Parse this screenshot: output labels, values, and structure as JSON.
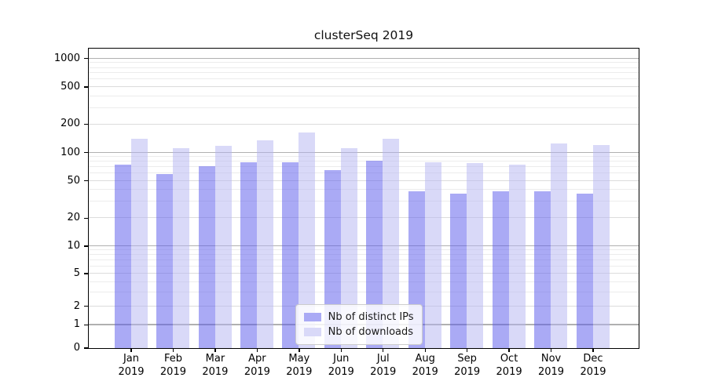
{
  "chart_data": {
    "type": "bar",
    "title": "clusterSeq 2019",
    "categories": [
      "Jan 2019",
      "Feb 2019",
      "Mar 2019",
      "Apr 2019",
      "May 2019",
      "Jun 2019",
      "Jul 2019",
      "Aug 2019",
      "Sep 2019",
      "Oct 2019",
      "Nov 2019",
      "Dec 2019"
    ],
    "series": [
      {
        "name": "Nb of distinct IPs",
        "color": "#aaaaf5",
        "values": [
          73,
          58,
          71,
          78,
          78,
          64,
          81,
          38,
          36,
          38,
          38,
          36
        ]
      },
      {
        "name": "Nb of downloads",
        "color": "#d9d9f8",
        "values": [
          140,
          110,
          116,
          133,
          162,
          110,
          140,
          78,
          77,
          73,
          124,
          120
        ]
      }
    ],
    "y_axis": {
      "scale": "asinh-log (log-like axis that includes 0)",
      "tick_labels": [
        0,
        1,
        2,
        5,
        10,
        20,
        50,
        100,
        200,
        500,
        1000
      ],
      "range": [
        0,
        1000
      ],
      "major_grid_values": [
        1,
        10,
        100,
        1000
      ],
      "mid_grid_values": [
        2,
        5,
        20,
        50,
        200,
        500
      ],
      "minor_grid_values": [
        3,
        4,
        6,
        7,
        8,
        9,
        30,
        40,
        60,
        70,
        80,
        90,
        300,
        400,
        600,
        700,
        800,
        900
      ]
    },
    "legend": {
      "position": "lower center"
    },
    "grid": "horizontal, on",
    "colors": {
      "major_grid": "#b0b0b0",
      "mid_grid": "#dcdcdc",
      "minor_grid": "#ececec",
      "axis": "#000000",
      "bar_alpha": 0.5
    }
  }
}
